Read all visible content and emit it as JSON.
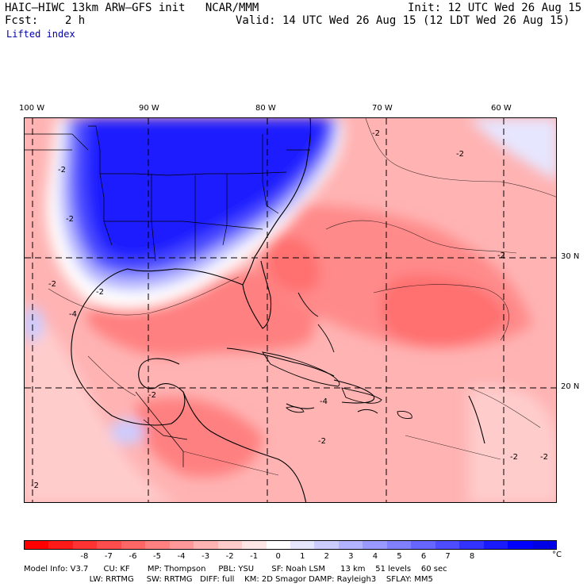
{
  "header": {
    "left_line1": "HAIC–HIWC 13km ARW–GFS init   NCAR/MMM",
    "left_line2": "Fcst:    2 h",
    "right_line1": "Init: 12 UTC Wed 26 Aug 15",
    "right_line2": "Valid: 14 UTC Wed 26 Aug 15 (12 LDT Wed 26 Aug 15)",
    "field_name": "Lifted index"
  },
  "axes": {
    "longitudes": [
      "100 W",
      "90 W",
      "80 W",
      "70 W",
      "60 W"
    ],
    "latitudes": [
      "30 N",
      "20 N"
    ]
  },
  "contour_labels": [
    "-2",
    "-2",
    "-2",
    "-2",
    "-2",
    "-2",
    "-2",
    "-4",
    "-2",
    "-2",
    "-2",
    "-4",
    "-2",
    "-2"
  ],
  "colorbar": {
    "unit": "°C",
    "ticks": [
      "-8",
      "-7",
      "-6",
      "-5",
      "-4",
      "-3",
      "-2",
      "-1",
      "0",
      "1",
      "2",
      "3",
      "4",
      "5",
      "6",
      "7",
      "8"
    ],
    "colors": [
      "#ff0000",
      "#ff1a1a",
      "#ff3333",
      "#ff4d4d",
      "#ff6666",
      "#ff8080",
      "#ff9999",
      "#ffb3b3",
      "#ffcccc",
      "#ffe6e6",
      "#ffffff",
      "#e6e6ff",
      "#ccccff",
      "#b3b3ff",
      "#9999ff",
      "#8080ff",
      "#6666ff",
      "#4d4dff",
      "#3333ff",
      "#1a1aff",
      "#0000ff",
      "#0000e6"
    ]
  },
  "model_info": {
    "line1": "Model Info: V3.7      CU: KF       MP: Thompson     PBL: YSU       SF: Noah LSM      13 km    51 levels    60 sec",
    "line2": "                          LW: RRTMG     SW: RRTMG   DIFF: full    KM: 2D Smagor DAMP: Rayleigh3    SFLAY: MM5"
  }
}
